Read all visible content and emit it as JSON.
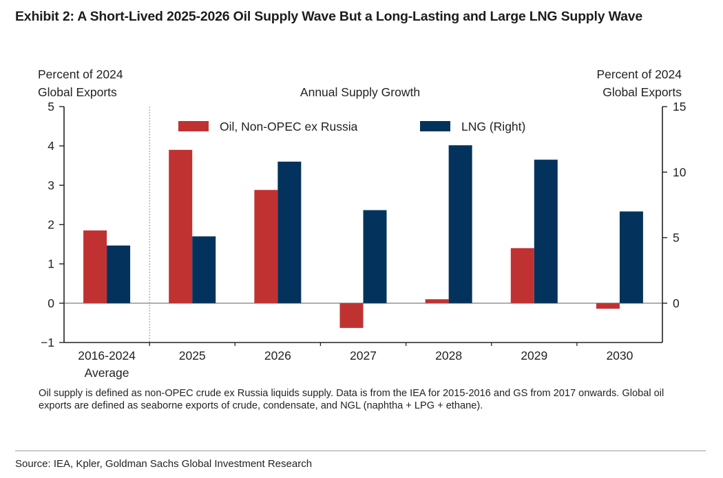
{
  "title": "Exhibit 2: A Short-Lived 2025-2026 Oil Supply Wave But a Long-Lasting and Large LNG Supply Wave",
  "note": "Oil supply is defined as non-OPEC crude ex Russia liquids supply. Data is from the IEA for 2015-2016 and GS from 2017 onwards. Global oil exports are defined as seaborne exports of crude, condensate, and NGL (naphtha + LPG + ethane).",
  "source": "Source: IEA, Kpler, Goldman Sachs Global Investment Research",
  "chart_data": {
    "type": "bar",
    "title": "Annual Supply Growth",
    "ylabel_left": [
      "Percent of 2024",
      "Global Exports"
    ],
    "ylabel_right": [
      "Percent of 2024",
      "Global Exports"
    ],
    "categories": [
      [
        "2016-2024",
        "Average"
      ],
      [
        "2025"
      ],
      [
        "2026"
      ],
      [
        "2027"
      ],
      [
        "2028"
      ],
      [
        "2029"
      ],
      [
        "2030"
      ]
    ],
    "separator_after_category": 0,
    "ylim_left": [
      -1,
      5
    ],
    "yticks_left": [
      -1,
      0,
      1,
      2,
      3,
      4,
      5
    ],
    "ylim_right": [
      -3,
      15
    ],
    "yticks_right": [
      0,
      5,
      10,
      15
    ],
    "grid": false,
    "legend_position": "top-center",
    "series": [
      {
        "name": "Oil, Non-OPEC ex Russia",
        "axis": "left",
        "color": "#c03232",
        "values": [
          1.85,
          3.9,
          2.88,
          -0.63,
          0.1,
          1.4,
          -0.14
        ]
      },
      {
        "name": "LNG (Right)",
        "axis": "right",
        "color": "#03335c",
        "values": [
          4.4,
          5.1,
          10.8,
          7.1,
          12.05,
          10.95,
          7.0
        ]
      }
    ]
  }
}
